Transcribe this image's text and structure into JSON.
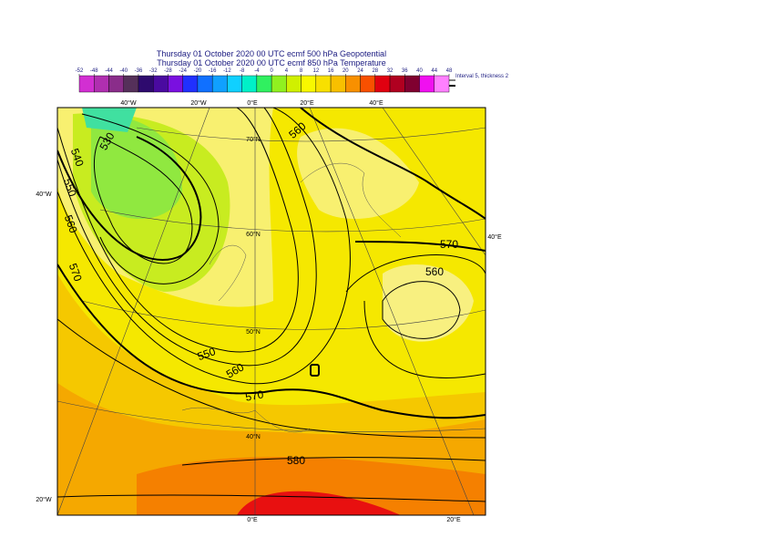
{
  "header": {
    "lines": [
      "Thursday 01 October 2020 00 UTC ecmf 500 hPa Geopotential",
      "Thursday 01 October 2020 00 UTC ecmf 850 hPa Temperature"
    ]
  },
  "colorbar": {
    "ticks": [
      -52,
      -48,
      -44,
      -40,
      -36,
      -32,
      -28,
      -24,
      -20,
      -16,
      -12,
      -8,
      -4,
      0,
      4,
      8,
      12,
      16,
      20,
      24,
      28,
      32,
      36,
      40,
      44,
      48
    ],
    "colors": [
      "#d22fd2",
      "#b02fb0",
      "#8a2d8a",
      "#55305a",
      "#2e0a6e",
      "#4a0aa0",
      "#7a10e0",
      "#2030ff",
      "#1070ff",
      "#10a0ff",
      "#10d0ff",
      "#00f0c8",
      "#30f060",
      "#90f020",
      "#d0f000",
      "#f8f800",
      "#f8e000",
      "#f8c000",
      "#f89000",
      "#f85000",
      "#e00010",
      "#b00020",
      "#800030",
      "#f010f0",
      "#ff80ff"
    ],
    "note": "Interval 5, thickness 2"
  },
  "map": {
    "lon_labels": [
      "40°W",
      "20°W",
      "0°E",
      "20°E",
      "40°E",
      "40°W",
      "20°W",
      "40°E",
      "0°E",
      "20°E"
    ],
    "lat_labels": [
      "70°N",
      "60°N",
      "50°N",
      "40°N"
    ],
    "contour_labels": [
      530,
      540,
      550,
      560,
      570,
      560,
      550,
      560,
      570,
      580,
      570,
      560
    ]
  }
}
